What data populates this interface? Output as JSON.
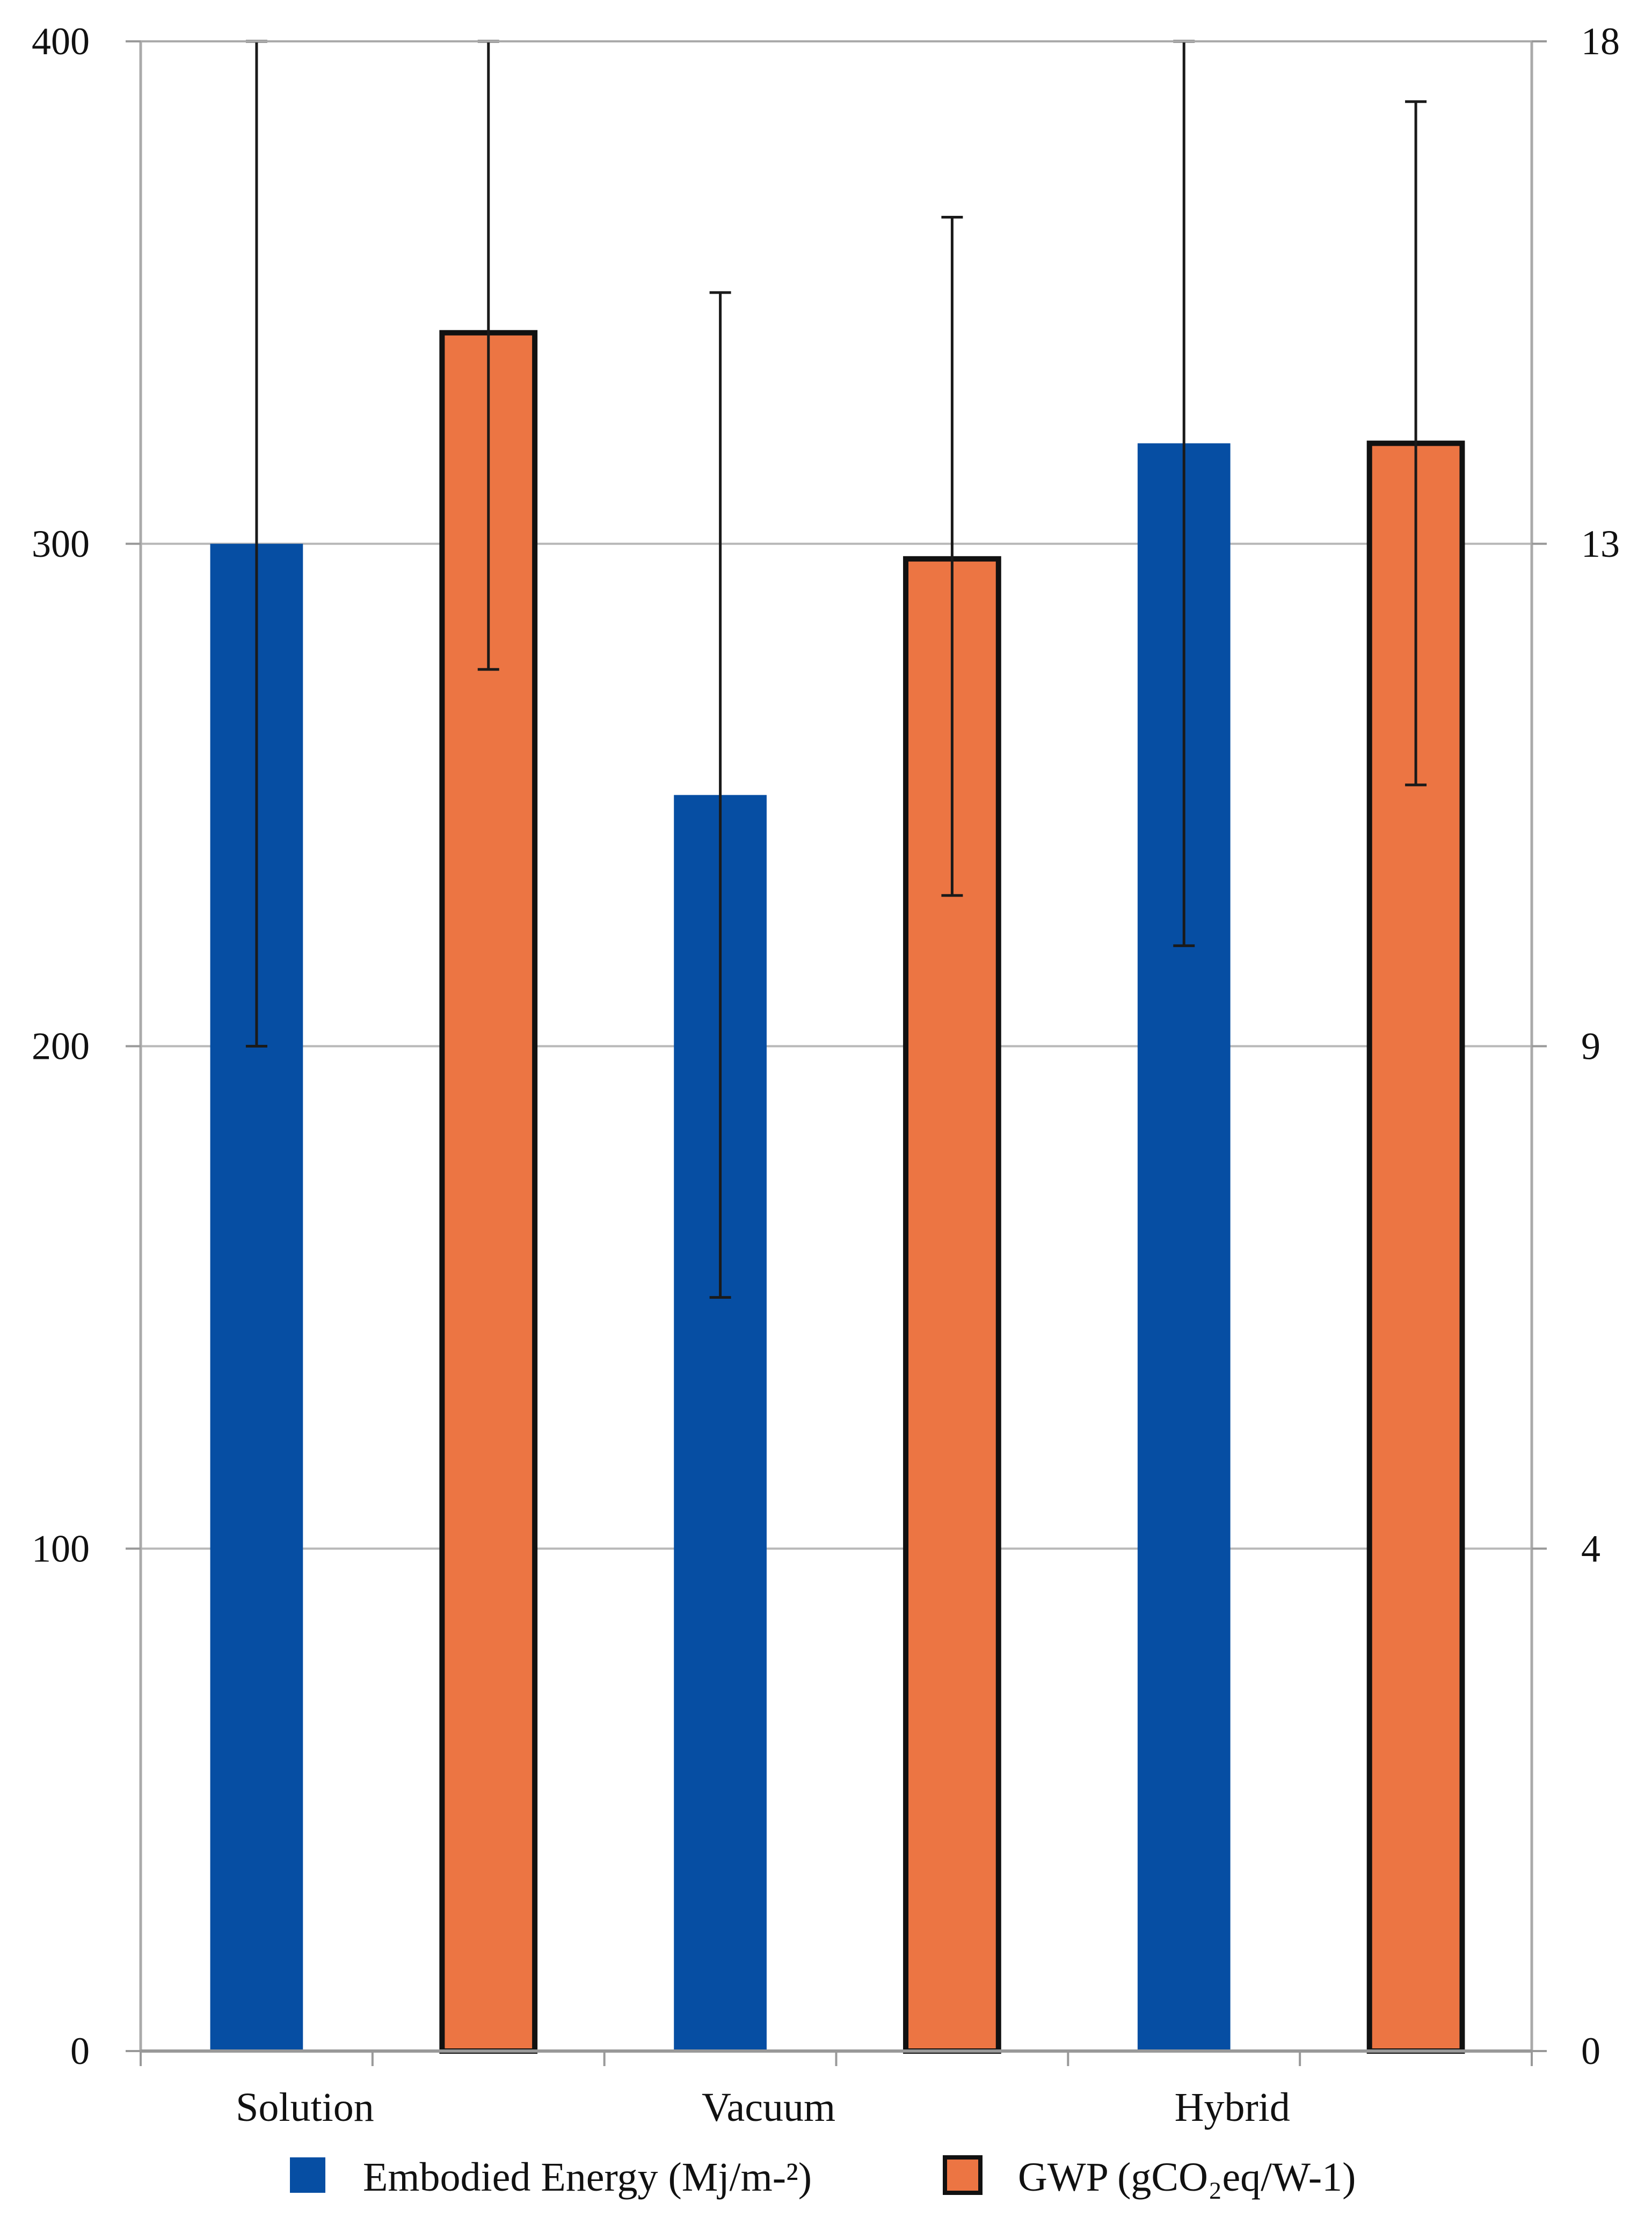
{
  "chart_data": {
    "type": "bar",
    "title": "",
    "xlabel": "",
    "categories": [
      "Solution",
      "Vacuum",
      "Hybrid"
    ],
    "y_left": {
      "ylim": [
        0,
        400
      ],
      "ticks": [
        "0",
        "100",
        "200",
        "300",
        "400"
      ]
    },
    "y_right": {
      "ticks": [
        "0",
        "4",
        "9",
        "13",
        "18"
      ]
    },
    "grid": true,
    "legend_position": "bottom",
    "series": [
      {
        "name": "Embodied Energy (Mj/m-²)",
        "color": "#064EA3",
        "axis": "left",
        "values": [
          300,
          250,
          320
        ],
        "err_low": [
          200,
          150,
          220
        ],
        "err_high": [
          400,
          350,
          400
        ]
      },
      {
        "name": "GWP (gCO₂eq/W-1)",
        "color": "#EC7543",
        "outline": "#111111",
        "axis": "left",
        "values": [
          342,
          297,
          320
        ],
        "err_low": [
          275,
          230,
          252
        ],
        "err_high": [
          400,
          365,
          388
        ]
      }
    ]
  }
}
